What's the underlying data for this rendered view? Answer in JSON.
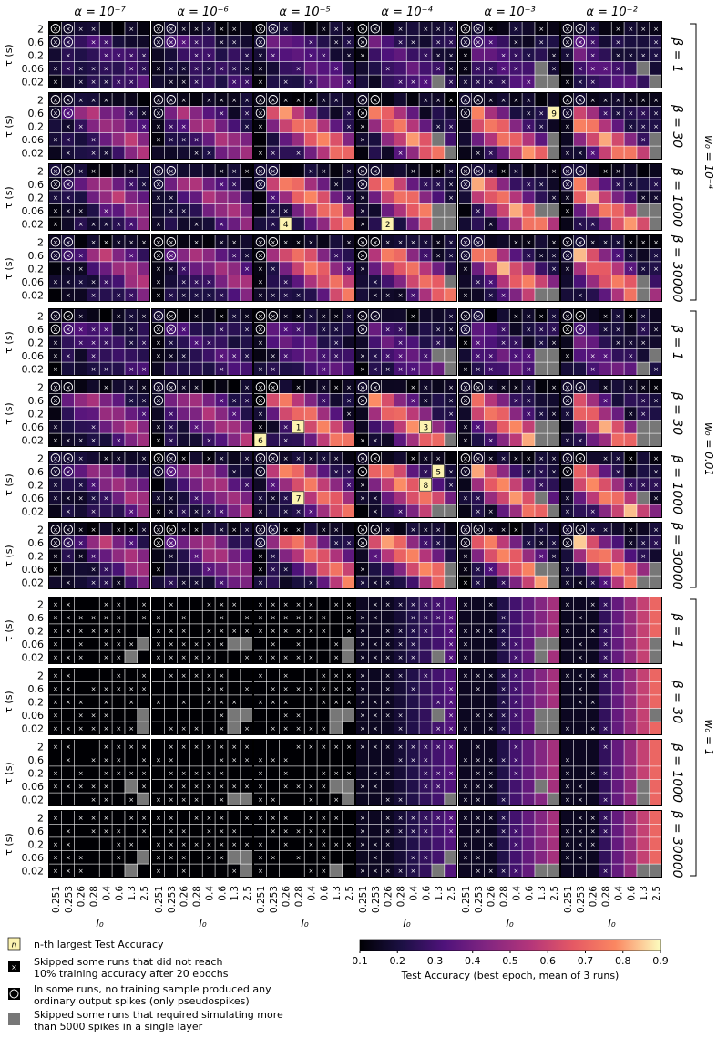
{
  "chart_data": {
    "type": "heatmap",
    "alpha_labels": [
      "α = 10⁻⁷",
      "α = 10⁻⁶",
      "α = 10⁻⁵",
      "α = 10⁻⁴",
      "α = 10⁻³",
      "α = 10⁻²"
    ],
    "beta_labels": [
      "β = 1",
      "β = 30",
      "β = 1000",
      "β = 30000"
    ],
    "w0_labels": [
      "w₀ = 10⁻⁴",
      "w₀ = 0.01",
      "w₀ = 1"
    ],
    "tau_ticks": [
      "2",
      "0.6",
      "0.2",
      "0.06",
      "0.02"
    ],
    "i0_ticks": [
      "0.251",
      "0.253",
      "0.26",
      "0.28",
      "0.4",
      "0.6",
      "1.3",
      "2.5"
    ],
    "ylabel": "τ (s)",
    "xlabel": "I₀",
    "colorbar": {
      "label": "Test Accuracy (best epoch, mean of 3 runs)",
      "min": 0.1,
      "max": 0.9,
      "ticks": [
        "0.1",
        "0.2",
        "0.3",
        "0.4",
        "0.5",
        "0.6",
        "0.7",
        "0.8",
        "0.9"
      ]
    },
    "legend": [
      {
        "symbol": "n",
        "text_lines": [
          "n-th largest Test Accuracy"
        ]
      },
      {
        "symbol": "×",
        "text_lines": [
          "Skipped some runs that did not reach",
          "10% training accuracy after 20 epochs"
        ]
      },
      {
        "symbol": "○",
        "text_lines": [
          "In some runs, no training sample produced any",
          "ordinary output spikes (only pseudospikes)"
        ]
      },
      {
        "symbol": "",
        "text_lines": [
          "Skipped some runs that required simulating more",
          "than 5000 spikes in a single layer"
        ]
      }
    ],
    "rank_labels": [
      {
        "w0": 1,
        "beta": 1,
        "alpha": 2,
        "tau": "0.06",
        "i0": "0.28",
        "rank": "1"
      },
      {
        "w0": 1,
        "beta": 1,
        "alpha": 3,
        "tau": "0.06",
        "i0": "0.6",
        "rank": "3"
      },
      {
        "w0": 1,
        "beta": 2,
        "alpha": 3,
        "tau": "0.6",
        "i0": "1.3",
        "rank": "5"
      },
      {
        "w0": 1,
        "beta": 1,
        "alpha": 2,
        "tau": "0.02",
        "i0": "0.251",
        "rank": "6"
      },
      {
        "w0": 1,
        "beta": 2,
        "alpha": 2,
        "tau": "0.06",
        "i0": "0.28",
        "rank": "7"
      },
      {
        "w0": 1,
        "beta": 2,
        "alpha": 3,
        "tau": "0.2",
        "i0": "0.6",
        "rank": "8"
      },
      {
        "w0": 0,
        "beta": 1,
        "alpha": 4,
        "tau": "0.6",
        "i0": "2.5",
        "rank": "9"
      },
      {
        "w0": 0,
        "beta": 2,
        "alpha": 3,
        "tau": "0.02",
        "i0": "0.26",
        "rank": "2"
      },
      {
        "w0": 0,
        "beta": 2,
        "alpha": 2,
        "tau": "0.02",
        "i0": "0.26",
        "rank": "4"
      }
    ]
  }
}
